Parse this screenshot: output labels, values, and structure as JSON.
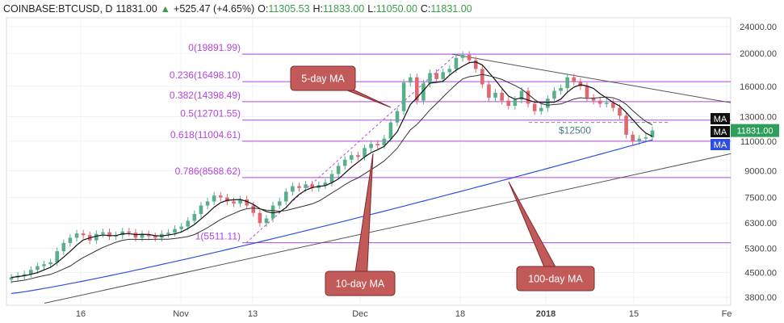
{
  "header": {
    "symbol": "COINBASE:BTCUSD, D",
    "last": "11831.00",
    "change_arrow": "▲",
    "change": "+525.47 (+4.65%)",
    "o_label": "O:",
    "o": "11305.53",
    "h_label": "H:",
    "h": "11833.00",
    "l_label": "L:",
    "l": "11050.00",
    "c_label": "C:",
    "c": "11831.00"
  },
  "colors": {
    "up": "#58b08a",
    "down": "#e0666f",
    "fib": "#b145e0",
    "ma5": "#111111",
    "ma100": "#2f4fe0",
    "trend": "#555555",
    "callout_fill": "#c25a5a",
    "callout_stroke": "#7d2a2a",
    "price_bg": "#2e9e5b",
    "grid": "#eef1f5"
  },
  "chart_data": {
    "type": "candlestick",
    "y_scale": "log",
    "ylim": [
      3600,
      25500
    ],
    "y_ticks": [
      3800,
      4500,
      5300,
      6300,
      7500,
      9000,
      11000,
      13000,
      16000,
      20000,
      24000
    ],
    "y_tick_labels": [
      "3800.00",
      "4500.00",
      "5300.00",
      "6300.00",
      "7500.00",
      "9000.00",
      "11000.00",
      "13000.00",
      "16000.00",
      "20000.00",
      "24000.00"
    ],
    "x_ticks": [
      "16",
      "Nov",
      "13",
      "Dec",
      "18",
      "2018",
      "15",
      "Fe"
    ],
    "last_price_label": "11831.00",
    "ma_badges": [
      "MA",
      "MA",
      "MA"
    ],
    "fib_levels": [
      {
        "label": "0(19891.99)",
        "value": 19891.99
      },
      {
        "label": "0.236(16498.10)",
        "value": 16498.1
      },
      {
        "label": "0.382(14398.49)",
        "value": 14398.49
      },
      {
        "label": "0.5(12701.55)",
        "value": 12701.55
      },
      {
        "label": "0.618(11004.61)",
        "value": 11004.61
      },
      {
        "label": "0.786(8588.62)",
        "value": 8588.62
      },
      {
        "label": "1(5511.11)",
        "value": 5511.11
      }
    ],
    "annotations": [
      {
        "text": "5-day MA"
      },
      {
        "text": "10-day MA"
      },
      {
        "text": "100-day MA"
      },
      {
        "text": "$12500",
        "value": 12500
      }
    ],
    "candle_close": [
      4350,
      4400,
      4450,
      4580,
      4700,
      4760,
      4820,
      5200,
      5500,
      5700,
      5870,
      5800,
      5600,
      5850,
      5920,
      5750,
      5800,
      5950,
      5900,
      5700,
      5840,
      5760,
      5700,
      5850,
      5900,
      6050,
      6150,
      6400,
      6700,
      7100,
      7300,
      7600,
      7500,
      7300,
      7200,
      7400,
      7100,
      6750,
      6300,
      6500,
      7100,
      7300,
      7800,
      8100,
      8000,
      8200,
      8000,
      8150,
      8300,
      8800,
      9300,
      9700,
      10000,
      9900,
      10500,
      10800,
      10700,
      11200,
      12500,
      13500,
      16400,
      17000,
      14500,
      16300,
      17500,
      16800,
      17600,
      18000,
      19400,
      19800,
      19100,
      18000,
      16200,
      14800,
      15300,
      14500,
      14000,
      14600,
      15500,
      14200,
      13500,
      13800,
      14700,
      15500,
      15800,
      17000,
      16500,
      16000,
      14800,
      14500,
      14200,
      14300,
      13800,
      13100,
      11500,
      11000,
      11200,
      11300,
      11831
    ]
  }
}
